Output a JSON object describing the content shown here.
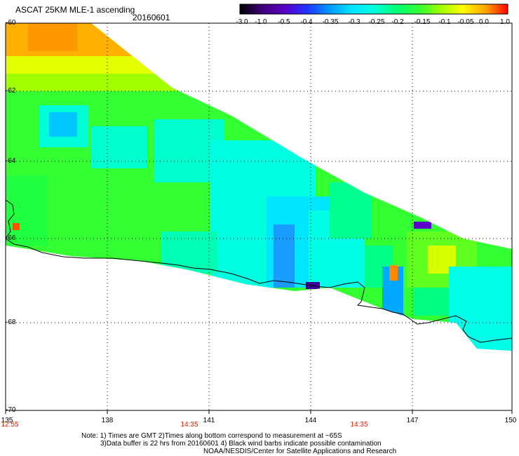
{
  "header": {
    "title": "ASCAT 25KM MLE-1 ascending",
    "date": "20160601"
  },
  "colorbar": {
    "labels": [
      "-3.0",
      "-1.0",
      "-0.5",
      "-0.4",
      "-0.35",
      "-0.3",
      "-0.25",
      "-0.2",
      "-0.15",
      "-0.1",
      "-0.05",
      "0.0",
      "1.0"
    ],
    "colors": [
      "#000000",
      "#3c0078",
      "#5a00c8",
      "#1e32ff",
      "#0096ff",
      "#00d2ff",
      "#00ffe6",
      "#00ff8c",
      "#32ff32",
      "#a0ff00",
      "#ffff00",
      "#ffb400",
      "#ff5000",
      "#ff0000"
    ]
  },
  "axes": {
    "y_ticks": [
      "-60",
      "-62",
      "-64",
      "-66",
      "-68",
      "-70"
    ],
    "x_ticks": [
      "135",
      "138",
      "141",
      "144",
      "147",
      "150"
    ],
    "times": [
      "12:55",
      "14:35",
      "14:35"
    ]
  },
  "notes": {
    "line1": "Note: 1) Times are GMT 2)Times along bottom correspond to measurement at ~65S",
    "line2": "3)Data buffer is 22 hrs from 20160601 4) Black wind barbs indicate possible contamination",
    "line3": "NOAA/NESDIS/Center for Satellite Applications and Research"
  }
}
